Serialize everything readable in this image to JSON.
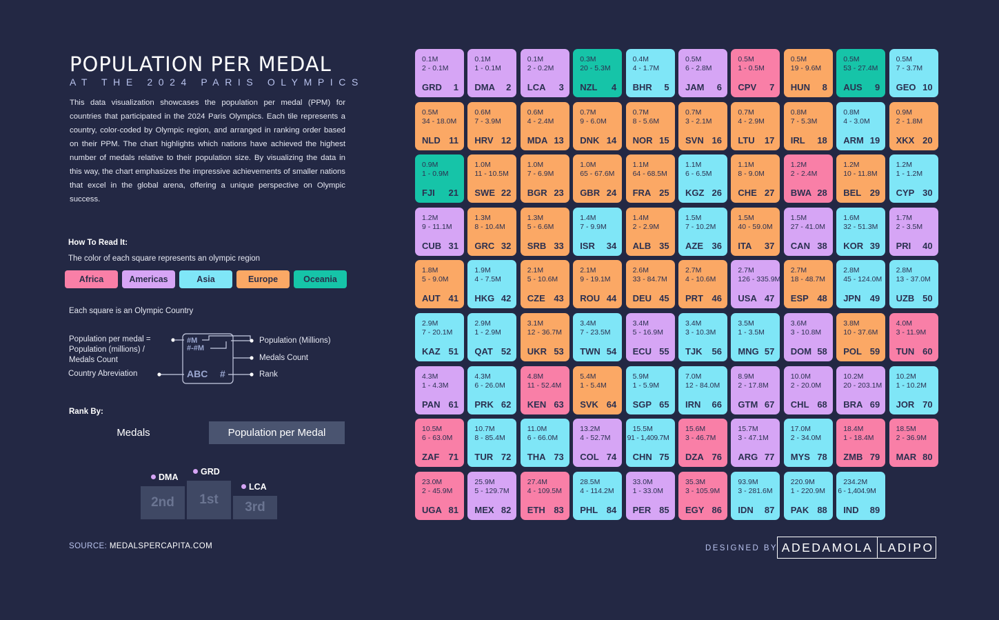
{
  "title": "POPULATION PER MEDAL",
  "subtitle": "AT THE 2024 PARIS OLYMPICS",
  "description": "This data visualization showcases the population per medal (PPM) for countries that participated in the 2024 Paris Olympics. Each tile represents a country, color-coded by Olympic region, and arranged in ranking order based on their PPM. The chart highlights which nations have achieved the highest number of medals relative to their population size. By visualizing the data in this way, the chart emphasizes the impressive achievements of smaller nations that excel in the global arena, offering a unique perspective on Olympic success.",
  "how_to_read": {
    "heading": "How To Read It:",
    "color_text": "The color of each square represents an olympic region",
    "regions": [
      {
        "key": "africa",
        "label": "Africa",
        "color": "#f97fa7"
      },
      {
        "key": "americas",
        "label": "Americas",
        "color": "#d6a5f5"
      },
      {
        "key": "asia",
        "label": "Asia",
        "color": "#7fe6f7"
      },
      {
        "key": "europe",
        "label": "Europe",
        "color": "#fba865"
      },
      {
        "key": "oceania",
        "label": "Oceania",
        "color": "#16c4a8"
      }
    ],
    "each_square_text": "Each square is an Olympic Country",
    "legend": {
      "left_ppm_line1": "Population per medal =",
      "left_ppm_line2": "Population (millions) /",
      "left_ppm_line3": "Medals Count",
      "left_abbr": "Country Abreviation",
      "right_pop": "Population (Millions)",
      "right_medals": "Medals Count",
      "right_rank": "Rank",
      "tile_line1": "#M",
      "tile_line2": "#-#M",
      "tile_abbr": "ABC",
      "tile_rank": "#"
    }
  },
  "rank_by": {
    "heading": "Rank By:",
    "options": [
      "Medals",
      "Population per Medal"
    ],
    "selected": "Population per Medal"
  },
  "podium": {
    "first": {
      "country": "GRD",
      "label": "1st"
    },
    "second": {
      "country": "DMA",
      "label": "2nd"
    },
    "third": {
      "country": "LCA",
      "label": "3rd"
    }
  },
  "source_prefix": "SOURCE:",
  "source_site": "MEDALSPERCAPITA.COM",
  "designed_by": "DESIGNED BY",
  "designer_first": "ADEDAMOLA",
  "designer_last": "LADIPO",
  "chart_data": {
    "type": "table",
    "title": "POPULATION PER MEDAL",
    "columns": [
      "rank",
      "country",
      "ppm",
      "medals",
      "population",
      "region"
    ],
    "tiles": [
      {
        "rank": 1,
        "abbr": "GRD",
        "ppm": "0.1M",
        "medals": "2",
        "pop": "0.1M",
        "region": "americas"
      },
      {
        "rank": 2,
        "abbr": "DMA",
        "ppm": "0.1M",
        "medals": "1",
        "pop": "0.1M",
        "region": "americas"
      },
      {
        "rank": 3,
        "abbr": "LCA",
        "ppm": "0.1M",
        "medals": "2",
        "pop": "0.2M",
        "region": "americas"
      },
      {
        "rank": 4,
        "abbr": "NZL",
        "ppm": "0.3M",
        "medals": "20",
        "pop": "5.3M",
        "region": "oceania"
      },
      {
        "rank": 5,
        "abbr": "BHR",
        "ppm": "0.4M",
        "medals": "4",
        "pop": "1.7M",
        "region": "asia"
      },
      {
        "rank": 6,
        "abbr": "JAM",
        "ppm": "0.5M",
        "medals": "6",
        "pop": "2.8M",
        "region": "americas"
      },
      {
        "rank": 7,
        "abbr": "CPV",
        "ppm": "0.5M",
        "medals": "1",
        "pop": "0.5M",
        "region": "africa"
      },
      {
        "rank": 8,
        "abbr": "HUN",
        "ppm": "0.5M",
        "medals": "19",
        "pop": "9.6M",
        "region": "europe"
      },
      {
        "rank": 9,
        "abbr": "AUS",
        "ppm": "0.5M",
        "medals": "53",
        "pop": "27.4M",
        "region": "oceania"
      },
      {
        "rank": 10,
        "abbr": "GEO",
        "ppm": "0.5M",
        "medals": "7",
        "pop": "3.7M",
        "region": "asia"
      },
      {
        "rank": 11,
        "abbr": "NLD",
        "ppm": "0.5M",
        "medals": "34",
        "pop": "18.0M",
        "region": "europe"
      },
      {
        "rank": 12,
        "abbr": "HRV",
        "ppm": "0.6M",
        "medals": "7",
        "pop": "3.9M",
        "region": "europe"
      },
      {
        "rank": 13,
        "abbr": "MDA",
        "ppm": "0.6M",
        "medals": "4",
        "pop": "2.4M",
        "region": "europe"
      },
      {
        "rank": 14,
        "abbr": "DNK",
        "ppm": "0.7M",
        "medals": "9",
        "pop": "6.0M",
        "region": "europe"
      },
      {
        "rank": 15,
        "abbr": "NOR",
        "ppm": "0.7M",
        "medals": "8",
        "pop": "5.6M",
        "region": "europe"
      },
      {
        "rank": 16,
        "abbr": "SVN",
        "ppm": "0.7M",
        "medals": "3",
        "pop": "2.1M",
        "region": "europe"
      },
      {
        "rank": 17,
        "abbr": "LTU",
        "ppm": "0.7M",
        "medals": "4",
        "pop": "2.9M",
        "region": "europe"
      },
      {
        "rank": 18,
        "abbr": "IRL",
        "ppm": "0.8M",
        "medals": "7",
        "pop": "5.3M",
        "region": "europe"
      },
      {
        "rank": 19,
        "abbr": "ARM",
        "ppm": "0.8M",
        "medals": "4",
        "pop": "3.0M",
        "region": "asia"
      },
      {
        "rank": 20,
        "abbr": "XKX",
        "ppm": "0.9M",
        "medals": "2",
        "pop": "1.8M",
        "region": "europe"
      },
      {
        "rank": 21,
        "abbr": "FJI",
        "ppm": "0.9M",
        "medals": "1",
        "pop": "0.9M",
        "region": "oceania"
      },
      {
        "rank": 22,
        "abbr": "SWE",
        "ppm": "1.0M",
        "medals": "11",
        "pop": "10.5M",
        "region": "europe"
      },
      {
        "rank": 23,
        "abbr": "BGR",
        "ppm": "1.0M",
        "medals": "7",
        "pop": "6.9M",
        "region": "europe"
      },
      {
        "rank": 24,
        "abbr": "GBR",
        "ppm": "1.0M",
        "medals": "65",
        "pop": "67.6M",
        "region": "europe"
      },
      {
        "rank": 25,
        "abbr": "FRA",
        "ppm": "1.1M",
        "medals": "64",
        "pop": "68.5M",
        "region": "europe"
      },
      {
        "rank": 26,
        "abbr": "KGZ",
        "ppm": "1.1M",
        "medals": "6",
        "pop": "6.5M",
        "region": "asia"
      },
      {
        "rank": 27,
        "abbr": "CHE",
        "ppm": "1.1M",
        "medals": "8",
        "pop": "9.0M",
        "region": "europe"
      },
      {
        "rank": 28,
        "abbr": "BWA",
        "ppm": "1.2M",
        "medals": "2",
        "pop": "2.4M",
        "region": "africa"
      },
      {
        "rank": 29,
        "abbr": "BEL",
        "ppm": "1.2M",
        "medals": "10",
        "pop": "11.8M",
        "region": "europe"
      },
      {
        "rank": 30,
        "abbr": "CYP",
        "ppm": "1.2M",
        "medals": "1",
        "pop": "1.2M",
        "region": "asia"
      },
      {
        "rank": 31,
        "abbr": "CUB",
        "ppm": "1.2M",
        "medals": "9",
        "pop": "11.1M",
        "region": "americas"
      },
      {
        "rank": 32,
        "abbr": "GRC",
        "ppm": "1.3M",
        "medals": "8",
        "pop": "10.4M",
        "region": "europe"
      },
      {
        "rank": 33,
        "abbr": "SRB",
        "ppm": "1.3M",
        "medals": "5",
        "pop": "6.6M",
        "region": "europe"
      },
      {
        "rank": 34,
        "abbr": "ISR",
        "ppm": "1.4M",
        "medals": "7",
        "pop": "9.9M",
        "region": "asia"
      },
      {
        "rank": 35,
        "abbr": "ALB",
        "ppm": "1.4M",
        "medals": "2",
        "pop": "2.9M",
        "region": "europe"
      },
      {
        "rank": 36,
        "abbr": "AZE",
        "ppm": "1.5M",
        "medals": "7",
        "pop": "10.2M",
        "region": "asia"
      },
      {
        "rank": 37,
        "abbr": "ITA",
        "ppm": "1.5M",
        "medals": "40",
        "pop": "59.0M",
        "region": "europe"
      },
      {
        "rank": 38,
        "abbr": "CAN",
        "ppm": "1.5M",
        "medals": "27",
        "pop": "41.0M",
        "region": "americas"
      },
      {
        "rank": 39,
        "abbr": "KOR",
        "ppm": "1.6M",
        "medals": "32",
        "pop": "51.3M",
        "region": "asia"
      },
      {
        "rank": 40,
        "abbr": "PRI",
        "ppm": "1.7M",
        "medals": "2",
        "pop": "3.5M",
        "region": "americas"
      },
      {
        "rank": 41,
        "abbr": "AUT",
        "ppm": "1.8M",
        "medals": "5",
        "pop": "9.0M",
        "region": "europe"
      },
      {
        "rank": 42,
        "abbr": "HKG",
        "ppm": "1.9M",
        "medals": "4",
        "pop": "7.5M",
        "region": "asia"
      },
      {
        "rank": 43,
        "abbr": "CZE",
        "ppm": "2.1M",
        "medals": "5",
        "pop": "10.6M",
        "region": "europe"
      },
      {
        "rank": 44,
        "abbr": "ROU",
        "ppm": "2.1M",
        "medals": "9",
        "pop": "19.1M",
        "region": "europe"
      },
      {
        "rank": 45,
        "abbr": "DEU",
        "ppm": "2.6M",
        "medals": "33",
        "pop": "84.7M",
        "region": "europe"
      },
      {
        "rank": 46,
        "abbr": "PRT",
        "ppm": "2.7M",
        "medals": "4",
        "pop": "10.6M",
        "region": "europe"
      },
      {
        "rank": 47,
        "abbr": "USA",
        "ppm": "2.7M",
        "medals": "126",
        "pop": "335.9M",
        "region": "americas"
      },
      {
        "rank": 48,
        "abbr": "ESP",
        "ppm": "2.7M",
        "medals": "18",
        "pop": "48.7M",
        "region": "europe"
      },
      {
        "rank": 49,
        "abbr": "JPN",
        "ppm": "2.8M",
        "medals": "45",
        "pop": "124.0M",
        "region": "asia"
      },
      {
        "rank": 50,
        "abbr": "UZB",
        "ppm": "2.8M",
        "medals": "13",
        "pop": "37.0M",
        "region": "asia"
      },
      {
        "rank": 51,
        "abbr": "KAZ",
        "ppm": "2.9M",
        "medals": "7",
        "pop": "20.1M",
        "region": "asia"
      },
      {
        "rank": 52,
        "abbr": "QAT",
        "ppm": "2.9M",
        "medals": "1",
        "pop": "2.9M",
        "region": "asia"
      },
      {
        "rank": 53,
        "abbr": "UKR",
        "ppm": "3.1M",
        "medals": "12",
        "pop": "36.7M",
        "region": "europe"
      },
      {
        "rank": 54,
        "abbr": "TWN",
        "ppm": "3.4M",
        "medals": "7",
        "pop": "23.5M",
        "region": "asia"
      },
      {
        "rank": 55,
        "abbr": "ECU",
        "ppm": "3.4M",
        "medals": "5",
        "pop": "16.9M",
        "region": "americas"
      },
      {
        "rank": 56,
        "abbr": "TJK",
        "ppm": "3.4M",
        "medals": "3",
        "pop": "10.3M",
        "region": "asia"
      },
      {
        "rank": 57,
        "abbr": "MNG",
        "ppm": "3.5M",
        "medals": "1",
        "pop": "3.5M",
        "region": "asia"
      },
      {
        "rank": 58,
        "abbr": "DOM",
        "ppm": "3.6M",
        "medals": "3",
        "pop": "10.8M",
        "region": "americas"
      },
      {
        "rank": 59,
        "abbr": "POL",
        "ppm": "3.8M",
        "medals": "10",
        "pop": "37.6M",
        "region": "europe"
      },
      {
        "rank": 60,
        "abbr": "TUN",
        "ppm": "4.0M",
        "medals": "3",
        "pop": "11.9M",
        "region": "africa"
      },
      {
        "rank": 61,
        "abbr": "PAN",
        "ppm": "4.3M",
        "medals": "1",
        "pop": "4.3M",
        "region": "americas"
      },
      {
        "rank": 62,
        "abbr": "PRK",
        "ppm": "4.3M",
        "medals": "6",
        "pop": "26.0M",
        "region": "asia"
      },
      {
        "rank": 63,
        "abbr": "KEN",
        "ppm": "4.8M",
        "medals": "11",
        "pop": "52.4M",
        "region": "africa"
      },
      {
        "rank": 64,
        "abbr": "SVK",
        "ppm": "5.4M",
        "medals": "1",
        "pop": "5.4M",
        "region": "europe"
      },
      {
        "rank": 65,
        "abbr": "SGP",
        "ppm": "5.9M",
        "medals": "1",
        "pop": "5.9M",
        "region": "asia"
      },
      {
        "rank": 66,
        "abbr": "IRN",
        "ppm": "7.0M",
        "medals": "12",
        "pop": "84.0M",
        "region": "asia"
      },
      {
        "rank": 67,
        "abbr": "GTM",
        "ppm": "8.9M",
        "medals": "2",
        "pop": "17.8M",
        "region": "americas"
      },
      {
        "rank": 68,
        "abbr": "CHL",
        "ppm": "10.0M",
        "medals": "2",
        "pop": "20.0M",
        "region": "americas"
      },
      {
        "rank": 69,
        "abbr": "BRA",
        "ppm": "10.2M",
        "medals": "20",
        "pop": "203.1M",
        "region": "americas"
      },
      {
        "rank": 70,
        "abbr": "JOR",
        "ppm": "10.2M",
        "medals": "1",
        "pop": "10.2M",
        "region": "asia"
      },
      {
        "rank": 71,
        "abbr": "ZAF",
        "ppm": "10.5M",
        "medals": "6",
        "pop": "63.0M",
        "region": "africa"
      },
      {
        "rank": 72,
        "abbr": "TUR",
        "ppm": "10.7M",
        "medals": "8",
        "pop": "85.4M",
        "region": "asia"
      },
      {
        "rank": 73,
        "abbr": "THA",
        "ppm": "11.0M",
        "medals": "6",
        "pop": "66.0M",
        "region": "asia"
      },
      {
        "rank": 74,
        "abbr": "COL",
        "ppm": "13.2M",
        "medals": "4",
        "pop": "52.7M",
        "region": "americas"
      },
      {
        "rank": 75,
        "abbr": "CHN",
        "ppm": "15.5M",
        "medals": "91",
        "pop": "1,409.7M",
        "region": "asia"
      },
      {
        "rank": 76,
        "abbr": "DZA",
        "ppm": "15.6M",
        "medals": "3",
        "pop": "46.7M",
        "region": "africa"
      },
      {
        "rank": 77,
        "abbr": "ARG",
        "ppm": "15.7M",
        "medals": "3",
        "pop": "47.1M",
        "region": "americas"
      },
      {
        "rank": 78,
        "abbr": "MYS",
        "ppm": "17.0M",
        "medals": "2",
        "pop": "34.0M",
        "region": "asia"
      },
      {
        "rank": 79,
        "abbr": "ZMB",
        "ppm": "18.4M",
        "medals": "1",
        "pop": "18.4M",
        "region": "africa"
      },
      {
        "rank": 80,
        "abbr": "MAR",
        "ppm": "18.5M",
        "medals": "2",
        "pop": "36.9M",
        "region": "africa"
      },
      {
        "rank": 81,
        "abbr": "UGA",
        "ppm": "23.0M",
        "medals": "2",
        "pop": "45.9M",
        "region": "africa"
      },
      {
        "rank": 82,
        "abbr": "MEX",
        "ppm": "25.9M",
        "medals": "5",
        "pop": "129.7M",
        "region": "americas"
      },
      {
        "rank": 83,
        "abbr": "ETH",
        "ppm": "27.4M",
        "medals": "4",
        "pop": "109.5M",
        "region": "africa"
      },
      {
        "rank": 84,
        "abbr": "PHL",
        "ppm": "28.5M",
        "medals": "4",
        "pop": "114.2M",
        "region": "asia"
      },
      {
        "rank": 85,
        "abbr": "PER",
        "ppm": "33.0M",
        "medals": "1",
        "pop": "33.0M",
        "region": "americas"
      },
      {
        "rank": 86,
        "abbr": "EGY",
        "ppm": "35.3M",
        "medals": "3",
        "pop": "105.9M",
        "region": "africa"
      },
      {
        "rank": 87,
        "abbr": "IDN",
        "ppm": "93.9M",
        "medals": "3",
        "pop": "281.6M",
        "region": "asia"
      },
      {
        "rank": 88,
        "abbr": "PAK",
        "ppm": "220.9M",
        "medals": "1",
        "pop": "220.9M",
        "region": "asia"
      },
      {
        "rank": 89,
        "abbr": "IND",
        "ppm": "234.2M",
        "medals": "6",
        "pop": "1,404.9M",
        "region": "asia"
      }
    ]
  }
}
